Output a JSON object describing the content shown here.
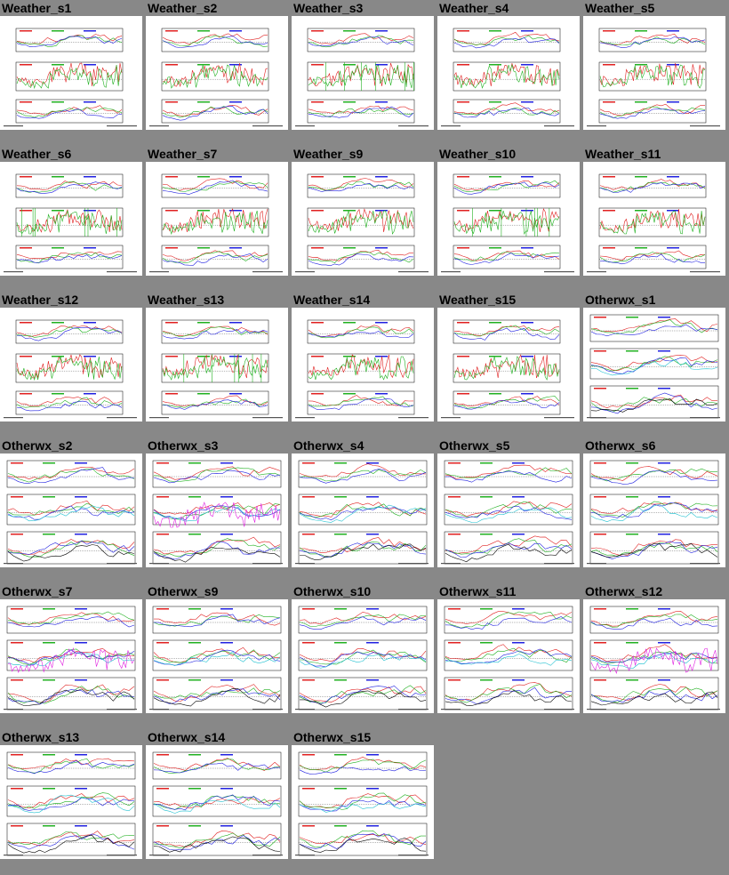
{
  "tiles": [
    {
      "title": "Weather_s1",
      "kind": "weather"
    },
    {
      "title": "Weather_s2",
      "kind": "weather"
    },
    {
      "title": "Weather_s3",
      "kind": "weather"
    },
    {
      "title": "Weather_s4",
      "kind": "weather"
    },
    {
      "title": "Weather_s5",
      "kind": "weather"
    },
    {
      "title": "Weather_s6",
      "kind": "weather"
    },
    {
      "title": "Weather_s7",
      "kind": "weather"
    },
    {
      "title": "Weather_s9",
      "kind": "weather"
    },
    {
      "title": "Weather_s10",
      "kind": "weather"
    },
    {
      "title": "Weather_s11",
      "kind": "weather"
    },
    {
      "title": "Weather_s12",
      "kind": "weather"
    },
    {
      "title": "Weather_s13",
      "kind": "weather"
    },
    {
      "title": "Weather_s14",
      "kind": "weather"
    },
    {
      "title": "Weather_s15",
      "kind": "weather"
    },
    {
      "title": "Otherwx_s1",
      "kind": "otherwx"
    },
    {
      "title": "Otherwx_s2",
      "kind": "otherwx"
    },
    {
      "title": "Otherwx_s3",
      "kind": "otherwx"
    },
    {
      "title": "Otherwx_s4",
      "kind": "otherwx"
    },
    {
      "title": "Otherwx_s5",
      "kind": "otherwx"
    },
    {
      "title": "Otherwx_s6",
      "kind": "otherwx"
    },
    {
      "title": "Otherwx_s7",
      "kind": "otherwx"
    },
    {
      "title": "Otherwx_s9",
      "kind": "otherwx"
    },
    {
      "title": "Otherwx_s10",
      "kind": "otherwx"
    },
    {
      "title": "Otherwx_s11",
      "kind": "otherwx"
    },
    {
      "title": "Otherwx_s12",
      "kind": "otherwx"
    },
    {
      "title": "Otherwx_s13",
      "kind": "otherwx"
    },
    {
      "title": "Otherwx_s14",
      "kind": "otherwx"
    },
    {
      "title": "Otherwx_s15",
      "kind": "otherwx"
    }
  ],
  "colors": {
    "page_background": "#888888",
    "thumbnail_background": "#ffffff",
    "series_red": "#e02020",
    "series_green": "#20b020",
    "series_blue": "#2020e0",
    "series_cyan": "#20c0d0",
    "series_magenta": "#e020e0",
    "series_black": "#000000"
  }
}
